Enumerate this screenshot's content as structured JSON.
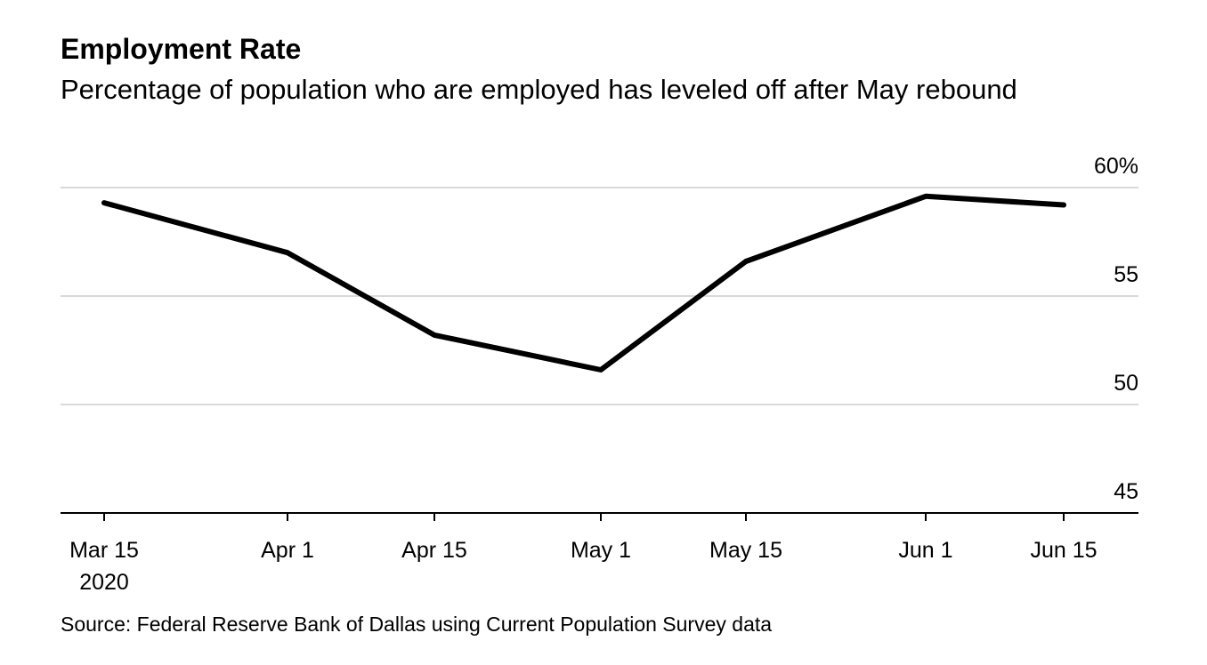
{
  "chart_data": {
    "type": "line",
    "title": "Employment Rate",
    "subtitle": "Percentage of population who are employed has leveled off after May rebound",
    "source": "Source: Federal Reserve Bank of Dallas using Current Population Survey data",
    "xlabel": "",
    "ylabel": "",
    "ylim": [
      45,
      60
    ],
    "y_ticks": [
      {
        "value": 60,
        "label": "60%"
      },
      {
        "value": 55,
        "label": "55"
      },
      {
        "value": 50,
        "label": "50"
      },
      {
        "value": 45,
        "label": "45"
      }
    ],
    "x_ticks": [
      {
        "label": "Mar 15",
        "sublabel": "2020"
      },
      {
        "label": "Apr 1",
        "sublabel": ""
      },
      {
        "label": "Apr 15",
        "sublabel": ""
      },
      {
        "label": "May 1",
        "sublabel": ""
      },
      {
        "label": "May 15",
        "sublabel": ""
      },
      {
        "label": "Jun 1",
        "sublabel": ""
      },
      {
        "label": "Jun 15",
        "sublabel": ""
      }
    ],
    "grid": true,
    "series": [
      {
        "name": "Employment Rate",
        "color": "#000000",
        "points": [
          {
            "date": "Mar 15",
            "value": 59.3
          },
          {
            "date": "Apr 1",
            "value": 57.0
          },
          {
            "date": "Apr 15",
            "value": 53.2
          },
          {
            "date": "May 1",
            "value": 51.6
          },
          {
            "date": "May 15",
            "value": 56.6
          },
          {
            "date": "Jun 1",
            "value": 59.6
          },
          {
            "date": "Jun 15",
            "value": 59.2
          }
        ]
      }
    ]
  }
}
